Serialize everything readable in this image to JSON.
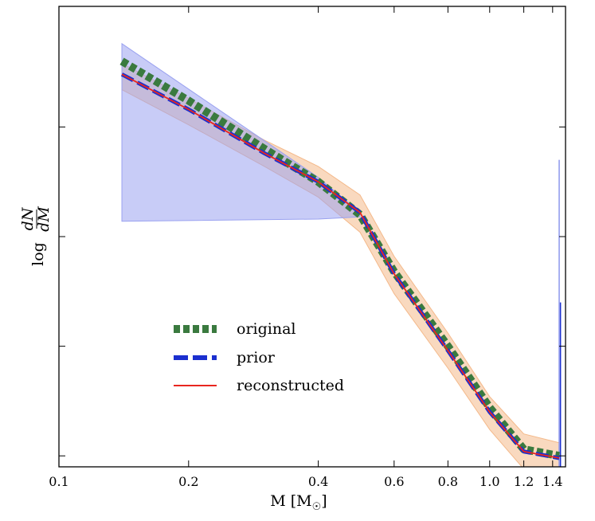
{
  "chart_data": {
    "type": "line",
    "xlabel": "M [M",
    "xlabel_sub": "☉",
    "xlabel_close": "]",
    "ylabel_log": "log",
    "ylabel_num": "dN",
    "ylabel_den": "dM",
    "x_scale": "log",
    "xlim": [
      0.1,
      1.5
    ],
    "ylim": [
      -1.05,
      1.05
    ],
    "x_ticks": [
      {
        "value": 0.1,
        "label": "0.1"
      },
      {
        "value": 0.2,
        "label": "0.2"
      },
      {
        "value": 0.4,
        "label": "0.4"
      },
      {
        "value": 0.6,
        "label": "0.6"
      },
      {
        "value": 0.8,
        "label": "0.8"
      },
      {
        "value": 1.0,
        "label": "1.0"
      },
      {
        "value": 1.2,
        "label": "1.2"
      },
      {
        "value": 1.4,
        "label": "1.4"
      }
    ],
    "y_ticks": [
      -1.0,
      -0.5,
      0.0,
      0.5
    ],
    "legend_position": "lower-left",
    "grid": false,
    "series": [
      {
        "name": "original",
        "color": "#3a7a3f",
        "style": "dotted-thick",
        "x": [
          0.14,
          0.2,
          0.3,
          0.4,
          0.5,
          0.6,
          0.8,
          1.0,
          1.2,
          1.45
        ],
        "y": [
          0.8,
          0.62,
          0.4,
          0.25,
          0.1,
          -0.16,
          -0.5,
          -0.78,
          -0.97,
          -1.0
        ]
      },
      {
        "name": "prior",
        "color": "#1b2fcf",
        "style": "dashed",
        "x": [
          0.14,
          0.2,
          0.3,
          0.4,
          0.5,
          0.6,
          0.8,
          1.0,
          1.2,
          1.45
        ],
        "y": [
          0.74,
          0.58,
          0.38,
          0.25,
          0.11,
          -0.17,
          -0.52,
          -0.8,
          -0.98,
          -1.01
        ]
      },
      {
        "name": "reconstructed",
        "color": "#e8261f",
        "style": "solid",
        "x": [
          0.14,
          0.2,
          0.3,
          0.4,
          0.5,
          0.6,
          0.8,
          1.0,
          1.2,
          1.45
        ],
        "y": [
          0.74,
          0.58,
          0.38,
          0.25,
          0.11,
          -0.17,
          -0.52,
          -0.8,
          -0.98,
          -1.01
        ]
      }
    ],
    "bands": [
      {
        "color": "#f4b98a",
        "x": [
          0.14,
          0.2,
          0.3,
          0.4,
          0.5,
          0.6,
          0.8,
          1.0,
          1.2,
          1.45
        ],
        "lower": [
          0.67,
          0.51,
          0.32,
          0.18,
          0.02,
          -0.26,
          -0.6,
          -0.88,
          -1.06,
          -1.06
        ],
        "upper": [
          0.79,
          0.63,
          0.44,
          0.32,
          0.19,
          -0.09,
          -0.44,
          -0.73,
          -0.9,
          -0.94
        ]
      },
      {
        "color": "#9aa2f0",
        "x": [
          0.14,
          0.4,
          0.5
        ],
        "lower": [
          0.07,
          0.08,
          0.09
        ],
        "upper": [
          0.88,
          0.27,
          0.11
        ]
      }
    ],
    "spikes": [
      {
        "x": 1.45,
        "y_from": -1.05,
        "y_to": 0.35,
        "color": "#8b95ec"
      },
      {
        "x": 1.46,
        "y_from": -1.05,
        "y_to": -0.3,
        "color": "#1b2fcf"
      }
    ]
  }
}
